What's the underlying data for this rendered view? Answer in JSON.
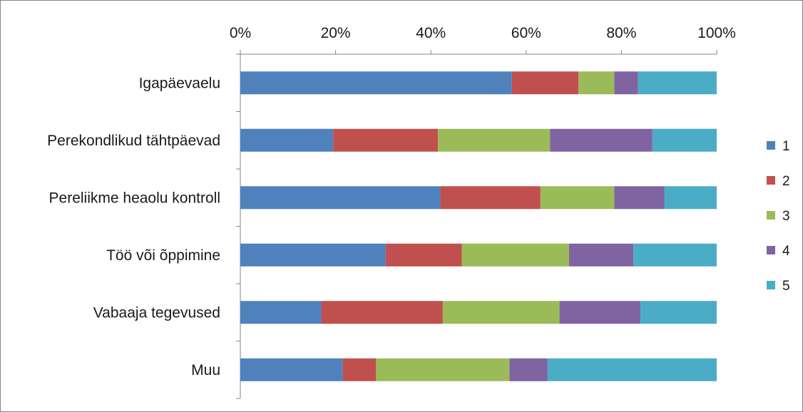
{
  "chart_data": {
    "type": "bar",
    "orientation": "horizontal",
    "stacked": "percent",
    "categories": [
      "Igapäevaelu",
      "Perekondlikud tähtpäevad",
      "Pereliikme heaolu kontroll",
      "Töö või õppimine",
      "Vabaaja tegevused",
      "Muu"
    ],
    "series": [
      {
        "name": "1",
        "color": "#4F81BD",
        "values": [
          57,
          19.5,
          42,
          30.5,
          17,
          21.5
        ]
      },
      {
        "name": "2",
        "color": "#C0504D",
        "values": [
          14,
          22,
          21,
          16,
          25.5,
          7
        ]
      },
      {
        "name": "3",
        "color": "#9BBB59",
        "values": [
          7.5,
          23.5,
          15.5,
          22.5,
          24.5,
          28
        ]
      },
      {
        "name": "4",
        "color": "#8064A2",
        "values": [
          5,
          21.5,
          10.5,
          13.5,
          17,
          8
        ]
      },
      {
        "name": "5",
        "color": "#4BACC6",
        "values": [
          16.5,
          13.5,
          11,
          17.5,
          16,
          35.5
        ]
      }
    ],
    "x_ticks": [
      "0%",
      "20%",
      "40%",
      "60%",
      "80%",
      "100%"
    ],
    "xlim": [
      0,
      100
    ],
    "x_axis_position": "top",
    "legend_position": "right",
    "grid": false
  }
}
